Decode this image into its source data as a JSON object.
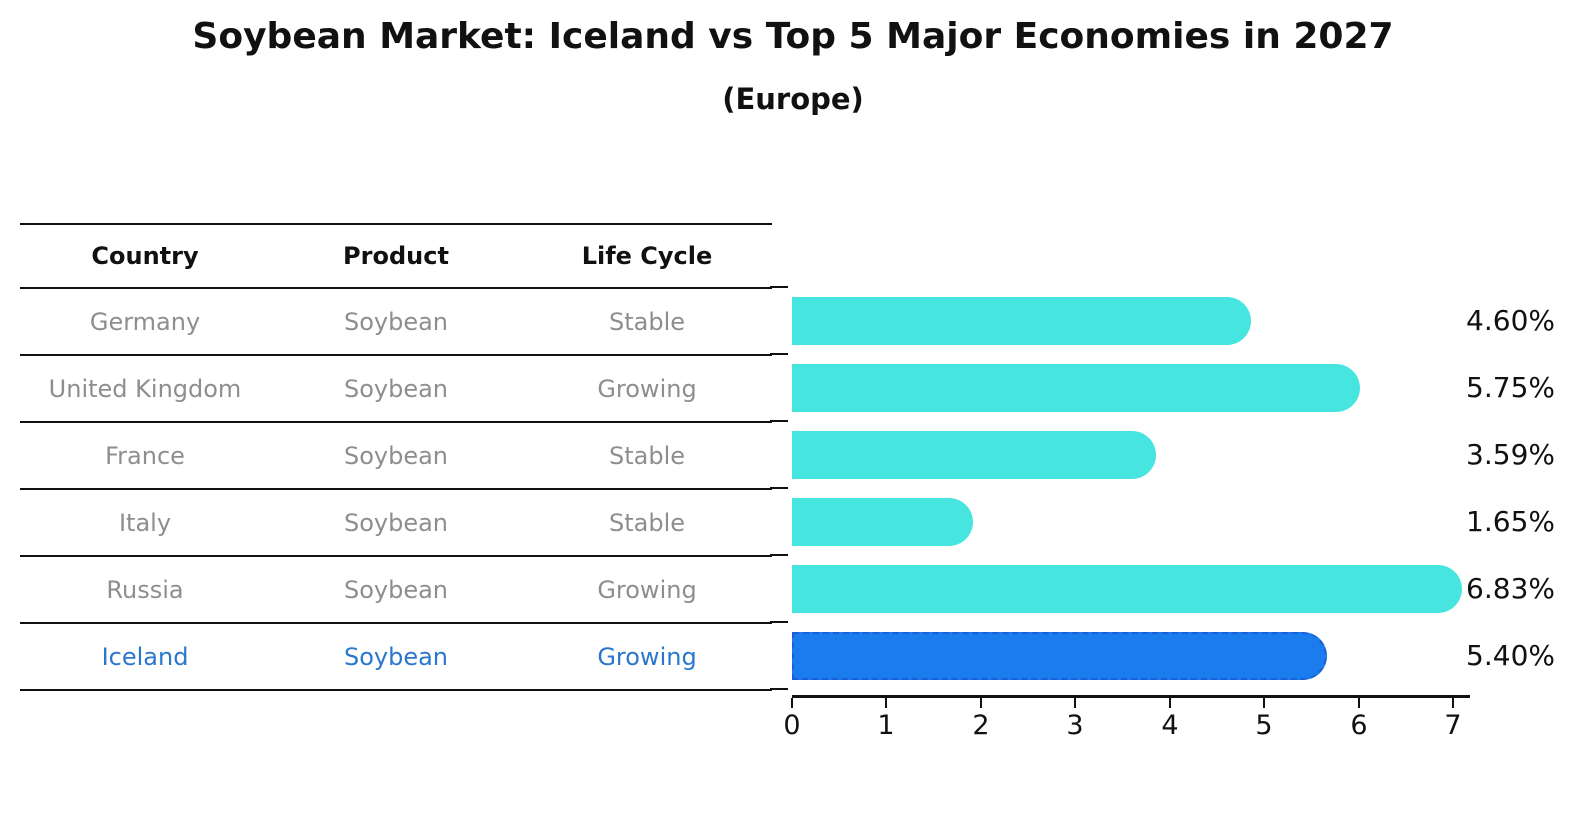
{
  "chart_data": {
    "type": "bar",
    "title": "Soybean Market: Iceland vs Top 5 Major Economies in 2027",
    "subtitle": "(Europe)",
    "xlabel": "",
    "ylabel": "",
    "xlim": [
      0,
      7.18
    ],
    "x_ticks": [
      "0",
      "1",
      "2",
      "3",
      "4",
      "5",
      "6",
      "7"
    ],
    "grid": false,
    "rows": [
      {
        "country": "Germany",
        "product": "Soybean",
        "life_cycle": "Stable",
        "value": 4.6,
        "value_label": "4.60%",
        "highlight": false
      },
      {
        "country": "United Kingdom",
        "product": "Soybean",
        "life_cycle": "Growing",
        "value": 5.75,
        "value_label": "5.75%",
        "highlight": false
      },
      {
        "country": "France",
        "product": "Soybean",
        "life_cycle": "Stable",
        "value": 3.59,
        "value_label": "3.59%",
        "highlight": false
      },
      {
        "country": "Italy",
        "product": "Soybean",
        "life_cycle": "Stable",
        "value": 1.65,
        "value_label": "1.65%",
        "highlight": false
      },
      {
        "country": "Russia",
        "product": "Soybean",
        "life_cycle": "Growing",
        "value": 6.83,
        "value_label": "6.83%",
        "highlight": false
      },
      {
        "country": "Iceland",
        "product": "Soybean",
        "life_cycle": "Growing",
        "value": 5.4,
        "value_label": "5.40%",
        "highlight": true
      }
    ],
    "colors": {
      "bar": "#46E5E0",
      "highlight_bar": "#1B7CEE",
      "highlight_border": "#1A5FD4",
      "row_text": "#8E8E8E",
      "highlight_text": "#2B77CD",
      "axis": "#111111"
    }
  },
  "table": {
    "headers": [
      "Country",
      "Product",
      "Life Cycle"
    ]
  }
}
